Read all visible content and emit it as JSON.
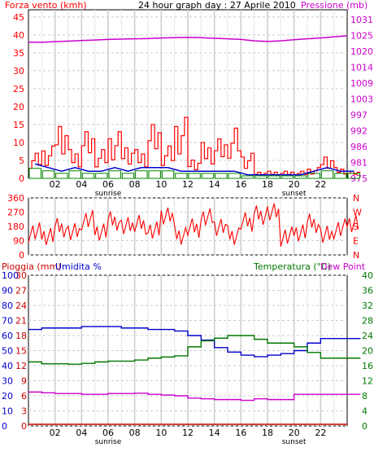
{
  "header": {
    "left_label": "Forza vento (kmh)",
    "title": "24 hour graph day : 27 Aprile 2010",
    "right_label": "Pressione (mb)"
  },
  "bottom_header": {
    "rain_label": "Pioggia (mm)",
    "humidity_label": "Umidita %",
    "temp_label": "Temperatura (°C)",
    "dew_label": "Dew Point"
  },
  "colors": {
    "wind": "#ff0000",
    "gust": "#cc0000",
    "avg_wind": "#0000cc",
    "calm": "#008800",
    "pressure": "#cc00cc",
    "direction": "#ff0000",
    "humidity": "#0000cc",
    "temperature": "#007700",
    "dew_point": "#cc00cc",
    "rain": "#cc0000",
    "grid": "#cccccc",
    "frame": "#000000",
    "wind_axis_text": "#ff0000",
    "pressure_axis_text": "#cc00cc",
    "humidity_axis_text": "#0000cc",
    "temperature_axis_text": "#007700"
  },
  "chart_data": [
    {
      "type": "line",
      "name": "wind_pressure",
      "x_hours": [
        0,
        1,
        2,
        3,
        4,
        5,
        6,
        7,
        8,
        9,
        10,
        11,
        12,
        13,
        14,
        15,
        16,
        17,
        18,
        19,
        20,
        21,
        22,
        23,
        24
      ],
      "x_tick_labels": [
        "02",
        "04",
        "06",
        "08",
        "10",
        "12",
        "14",
        "16",
        "18",
        "20",
        "22"
      ],
      "x_ticks": [
        2,
        4,
        6,
        8,
        10,
        12,
        14,
        16,
        18,
        20,
        22
      ],
      "sunrise_label": "sunrise",
      "sunset_label": "sunset",
      "sunrise_hour": 6,
      "sunset_hour": 20,
      "wind_axis_ticks": [
        0,
        5,
        10,
        15,
        20,
        25,
        30,
        35,
        40,
        45
      ],
      "wind_ylim": [
        0,
        47
      ],
      "pressure_tick_labels": [
        "975",
        "981",
        "986",
        "992",
        "997",
        "1003",
        "1009",
        "1014",
        "1020",
        "1025",
        "1031"
      ],
      "pressure_ylim": [
        975,
        1031
      ],
      "wind_gust": [
        7,
        9,
        17,
        8,
        13,
        8,
        13,
        10,
        8,
        15,
        9,
        17,
        6,
        10,
        11,
        14,
        7,
        2,
        2,
        2,
        2,
        3,
        7,
        3,
        2
      ],
      "wind_avg": [
        4,
        3,
        2,
        3,
        2,
        2,
        3,
        2,
        3,
        3,
        3,
        2,
        2,
        2,
        2,
        2,
        1,
        1,
        1,
        1,
        1,
        2,
        3,
        2,
        2
      ],
      "pressure": [
        1023,
        1023,
        1023.2,
        1023.4,
        1023.6,
        1023.8,
        1024,
        1024.1,
        1024.2,
        1024.3,
        1024.5,
        1024.6,
        1024.7,
        1024.6,
        1024.4,
        1024.2,
        1024.0,
        1023.5,
        1023.3,
        1023.5,
        1023.9,
        1024.2,
        1024.5,
        1024.9,
        1025.3
      ]
    },
    {
      "type": "line",
      "name": "wind_direction",
      "left_ticks": [
        360,
        270,
        180,
        90,
        0
      ],
      "right_labels": [
        "N",
        "W",
        "S",
        "E",
        "N"
      ],
      "ylim": [
        0,
        360
      ],
      "direction": [
        150,
        130,
        175,
        140,
        220,
        150,
        210,
        170,
        200,
        155,
        260,
        130,
        170,
        230,
        180,
        120,
        200,
        260,
        270,
        120,
        150,
        200,
        120,
        160,
        200
      ]
    },
    {
      "type": "line",
      "name": "temp_humidity_rain",
      "humidity_ticks": [
        0,
        10,
        20,
        30,
        40,
        50,
        60,
        70,
        80,
        90,
        100
      ],
      "rain_ticks": [
        0,
        3,
        6,
        9,
        12,
        15,
        18,
        21,
        24,
        27,
        30
      ],
      "temp_ticks": [
        0,
        4,
        8,
        12,
        16,
        20,
        24,
        28,
        32,
        36,
        40
      ],
      "humidity": [
        64,
        65,
        65,
        65,
        66,
        66,
        66,
        65,
        65,
        64,
        64,
        63,
        60,
        57,
        52,
        49,
        47,
        46,
        47,
        48,
        50,
        55,
        58,
        58,
        58
      ],
      "temperature": [
        17,
        16.5,
        16.5,
        16.4,
        16.6,
        17,
        17.2,
        17.2,
        17.5,
        18,
        18.3,
        18.6,
        21,
        22.6,
        23.3,
        24,
        24,
        23,
        22,
        22,
        21,
        19.5,
        18,
        18,
        18
      ],
      "dew_point": [
        9,
        8.8,
        8.6,
        8.6,
        8.4,
        8.4,
        8.6,
        8.6,
        8.7,
        8.4,
        8.2,
        8.0,
        7.4,
        7.2,
        7.0,
        7.0,
        6.8,
        7.2,
        7.0,
        7.0,
        8.4,
        8.4,
        8.4,
        8.4,
        8.4
      ],
      "rain": [
        0,
        0,
        0,
        0,
        0,
        0,
        0,
        0,
        0,
        0,
        0,
        0,
        0,
        0,
        0,
        0,
        0,
        0,
        0,
        0,
        0,
        0,
        0,
        0,
        0
      ]
    }
  ]
}
